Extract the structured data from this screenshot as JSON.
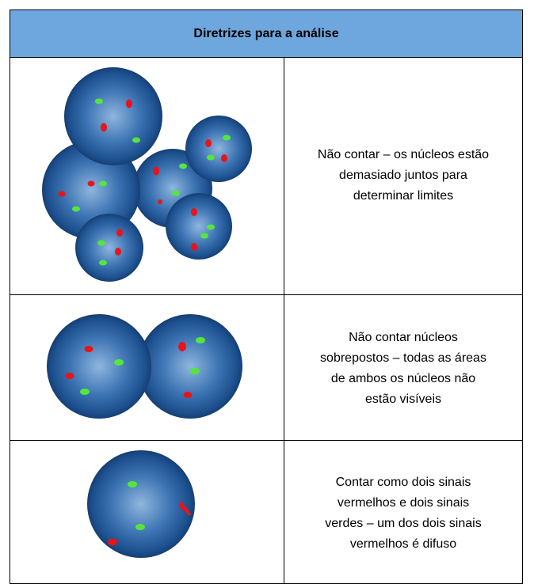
{
  "header": {
    "title": "Diretrizes para a análise"
  },
  "table": {
    "rows": [
      {
        "lines": [
          "Não contar – os núcleos estão",
          "demasiado juntos para",
          "determinar limites"
        ]
      },
      {
        "lines": [
          "Não contar núcleos",
          "sobrepostos – todas as áreas",
          "de ambos os núcleos não",
          "estão visíveis"
        ]
      },
      {
        "lines": [
          "Contar como dois sinais",
          "vermelhos e dois sinais",
          "verdes – um dos dois sinais",
          "vermelhos é difuso"
        ]
      }
    ]
  }
}
